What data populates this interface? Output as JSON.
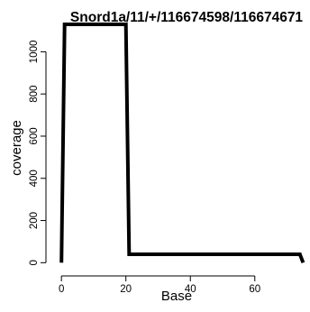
{
  "chart_data": {
    "type": "line",
    "title": "Snord1a/11/+/116674598/116674671",
    "xlabel": "Base",
    "ylabel": "coverage",
    "xlim": [
      -2,
      76
    ],
    "ylim": [
      -20,
      1160
    ],
    "xticks": [
      0,
      20,
      40,
      60
    ],
    "yticks": [
      0,
      200,
      400,
      600,
      800,
      1000
    ],
    "grid": false,
    "legend": "none",
    "line_color": "#000000",
    "series": [
      {
        "x": [
          0,
          1,
          20,
          21,
          74,
          75
        ],
        "y": [
          0,
          1130,
          1130,
          40,
          40,
          0
        ]
      }
    ]
  }
}
